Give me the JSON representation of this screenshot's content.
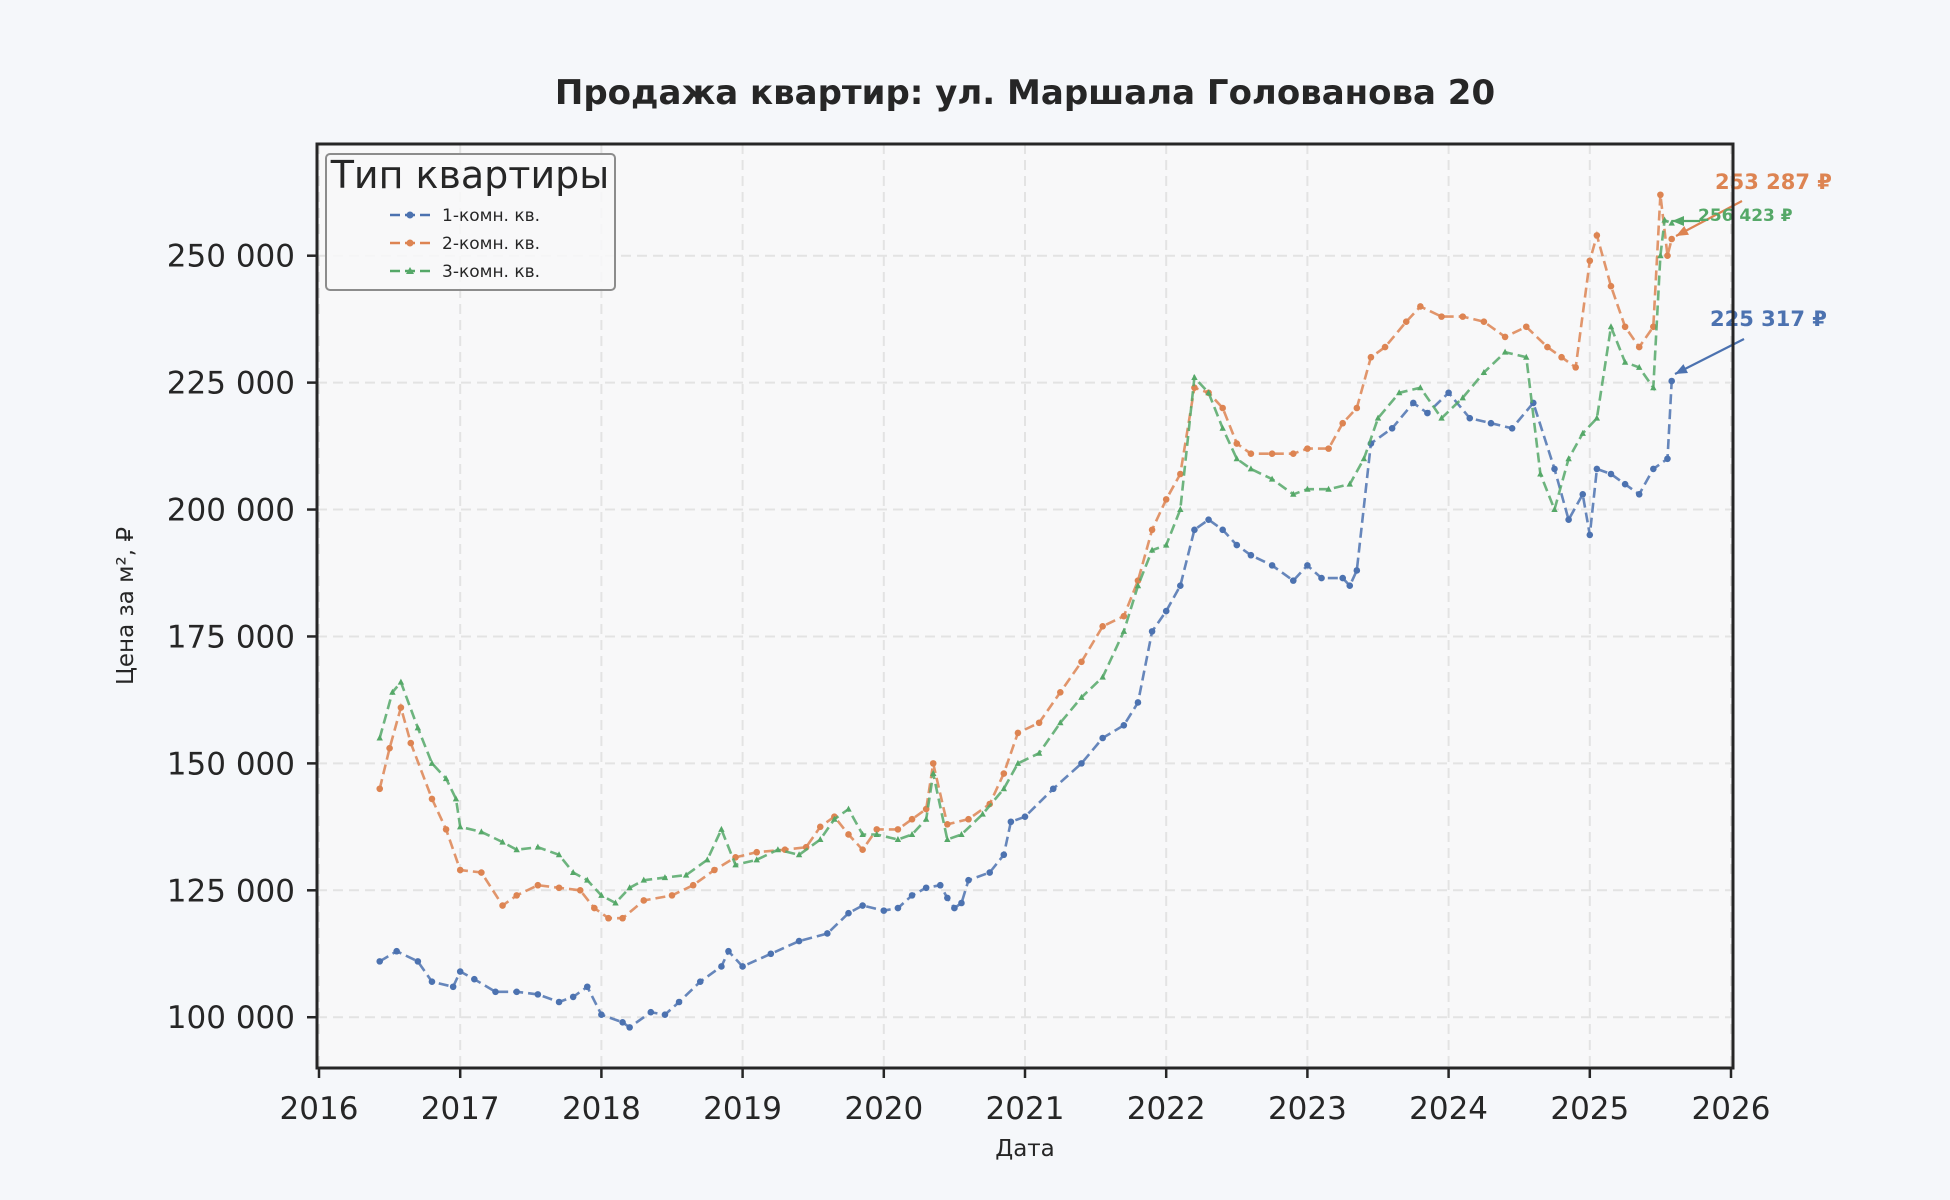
{
  "chart_data": {
    "type": "line",
    "title": "Продажа квартир: ул. Маршала Голованова 20",
    "xlabel": "Дата",
    "ylabel": "Цена за м², ₽",
    "xlim": [
      2016,
      2026
    ],
    "ylim": [
      90000,
      272000
    ],
    "x_ticks": [
      "2016",
      "2017",
      "2018",
      "2019",
      "2020",
      "2021",
      "2022",
      "2023",
      "2024",
      "2025",
      "2026"
    ],
    "y_ticks": [
      {
        "value": 100000,
        "label": "100 000"
      },
      {
        "value": 125000,
        "label": "125 000"
      },
      {
        "value": 150000,
        "label": "150 000"
      },
      {
        "value": 175000,
        "label": "175 000"
      },
      {
        "value": 200000,
        "label": "200 000"
      },
      {
        "value": 225000,
        "label": "225 000"
      },
      {
        "value": 250000,
        "label": "250 000"
      }
    ],
    "grid": true,
    "legend": {
      "title": "Тип квартиры",
      "position": "top-left"
    },
    "series": [
      {
        "name": "1-комн. кв.",
        "color": "#4c72b0",
        "marker": "circle",
        "points": [
          [
            2016.43,
            111000
          ],
          [
            2016.55,
            113000
          ],
          [
            2016.7,
            111000
          ],
          [
            2016.8,
            107000
          ],
          [
            2016.95,
            106000
          ],
          [
            2017.0,
            109000
          ],
          [
            2017.1,
            107500
          ],
          [
            2017.25,
            105000
          ],
          [
            2017.4,
            105000
          ],
          [
            2017.55,
            104500
          ],
          [
            2017.7,
            103000
          ],
          [
            2017.8,
            104000
          ],
          [
            2017.9,
            106000
          ],
          [
            2018.0,
            100500
          ],
          [
            2018.15,
            99000
          ],
          [
            2018.2,
            98000
          ],
          [
            2018.35,
            101000
          ],
          [
            2018.45,
            100500
          ],
          [
            2018.55,
            103000
          ],
          [
            2018.7,
            107000
          ],
          [
            2018.85,
            110000
          ],
          [
            2018.9,
            113000
          ],
          [
            2019.0,
            110000
          ],
          [
            2019.2,
            112500
          ],
          [
            2019.4,
            115000
          ],
          [
            2019.6,
            116500
          ],
          [
            2019.75,
            120500
          ],
          [
            2019.85,
            122000
          ],
          [
            2020.0,
            121000
          ],
          [
            2020.1,
            121500
          ],
          [
            2020.2,
            124000
          ],
          [
            2020.3,
            125500
          ],
          [
            2020.4,
            126000
          ],
          [
            2020.45,
            123500
          ],
          [
            2020.5,
            121500
          ],
          [
            2020.55,
            122500
          ],
          [
            2020.6,
            127000
          ],
          [
            2020.75,
            128500
          ],
          [
            2020.85,
            132000
          ],
          [
            2020.9,
            138500
          ],
          [
            2021.0,
            139500
          ],
          [
            2021.2,
            145000
          ],
          [
            2021.4,
            150000
          ],
          [
            2021.55,
            155000
          ],
          [
            2021.7,
            157500
          ],
          [
            2021.8,
            162000
          ],
          [
            2021.9,
            176000
          ],
          [
            2022.0,
            180000
          ],
          [
            2022.1,
            185000
          ],
          [
            2022.2,
            196000
          ],
          [
            2022.3,
            198000
          ],
          [
            2022.4,
            196000
          ],
          [
            2022.5,
            193000
          ],
          [
            2022.6,
            191000
          ],
          [
            2022.75,
            189000
          ],
          [
            2022.9,
            186000
          ],
          [
            2023.0,
            189000
          ],
          [
            2023.1,
            186500
          ],
          [
            2023.25,
            186500
          ],
          [
            2023.3,
            185000
          ],
          [
            2023.35,
            188000
          ],
          [
            2023.45,
            213000
          ],
          [
            2023.6,
            216000
          ],
          [
            2023.75,
            221000
          ],
          [
            2023.85,
            219000
          ],
          [
            2024.0,
            223000
          ],
          [
            2024.15,
            218000
          ],
          [
            2024.3,
            217000
          ],
          [
            2024.45,
            216000
          ],
          [
            2024.6,
            221000
          ],
          [
            2024.75,
            208000
          ],
          [
            2024.85,
            198000
          ],
          [
            2024.95,
            203000
          ],
          [
            2025.0,
            195000
          ],
          [
            2025.05,
            208000
          ],
          [
            2025.15,
            207000
          ],
          [
            2025.25,
            205000
          ],
          [
            2025.35,
            203000
          ],
          [
            2025.45,
            208000
          ],
          [
            2025.55,
            210000
          ],
          [
            2025.58,
            225317
          ]
        ]
      },
      {
        "name": "2-комн. кв.",
        "color": "#dd8452",
        "marker": "circle",
        "points": [
          [
            2016.43,
            145000
          ],
          [
            2016.5,
            153000
          ],
          [
            2016.58,
            161000
          ],
          [
            2016.65,
            154000
          ],
          [
            2016.8,
            143000
          ],
          [
            2016.9,
            137000
          ],
          [
            2017.0,
            129000
          ],
          [
            2017.15,
            128500
          ],
          [
            2017.3,
            122000
          ],
          [
            2017.4,
            124000
          ],
          [
            2017.55,
            126000
          ],
          [
            2017.7,
            125500
          ],
          [
            2017.85,
            125000
          ],
          [
            2017.95,
            121500
          ],
          [
            2018.05,
            119500
          ],
          [
            2018.15,
            119500
          ],
          [
            2018.3,
            123000
          ],
          [
            2018.5,
            124000
          ],
          [
            2018.65,
            126000
          ],
          [
            2018.8,
            129000
          ],
          [
            2018.95,
            131500
          ],
          [
            2019.1,
            132500
          ],
          [
            2019.3,
            133000
          ],
          [
            2019.45,
            133500
          ],
          [
            2019.55,
            137500
          ],
          [
            2019.65,
            139500
          ],
          [
            2019.75,
            136000
          ],
          [
            2019.85,
            133000
          ],
          [
            2019.95,
            137000
          ],
          [
            2020.1,
            137000
          ],
          [
            2020.2,
            139000
          ],
          [
            2020.3,
            141000
          ],
          [
            2020.35,
            150000
          ],
          [
            2020.45,
            138000
          ],
          [
            2020.6,
            139000
          ],
          [
            2020.75,
            142000
          ],
          [
            2020.85,
            148000
          ],
          [
            2020.95,
            156000
          ],
          [
            2021.1,
            158000
          ],
          [
            2021.25,
            164000
          ],
          [
            2021.4,
            170000
          ],
          [
            2021.55,
            177000
          ],
          [
            2021.7,
            179000
          ],
          [
            2021.8,
            186000
          ],
          [
            2021.9,
            196000
          ],
          [
            2022.0,
            202000
          ],
          [
            2022.1,
            207000
          ],
          [
            2022.2,
            224000
          ],
          [
            2022.3,
            223000
          ],
          [
            2022.4,
            220000
          ],
          [
            2022.5,
            213000
          ],
          [
            2022.6,
            211000
          ],
          [
            2022.75,
            211000
          ],
          [
            2022.9,
            211000
          ],
          [
            2023.0,
            212000
          ],
          [
            2023.15,
            212000
          ],
          [
            2023.25,
            217000
          ],
          [
            2023.35,
            220000
          ],
          [
            2023.45,
            230000
          ],
          [
            2023.55,
            232000
          ],
          [
            2023.7,
            237000
          ],
          [
            2023.8,
            240000
          ],
          [
            2023.95,
            238000
          ],
          [
            2024.1,
            238000
          ],
          [
            2024.25,
            237000
          ],
          [
            2024.4,
            234000
          ],
          [
            2024.55,
            236000
          ],
          [
            2024.7,
            232000
          ],
          [
            2024.8,
            230000
          ],
          [
            2024.9,
            228000
          ],
          [
            2025.0,
            249000
          ],
          [
            2025.05,
            254000
          ],
          [
            2025.15,
            244000
          ],
          [
            2025.25,
            236000
          ],
          [
            2025.35,
            232000
          ],
          [
            2025.45,
            236000
          ],
          [
            2025.5,
            262000
          ],
          [
            2025.55,
            250000
          ],
          [
            2025.58,
            253287
          ]
        ]
      },
      {
        "name": "3-комн. кв.",
        "color": "#55a868",
        "marker": "triangle",
        "points": [
          [
            2016.43,
            155000
          ],
          [
            2016.52,
            164000
          ],
          [
            2016.58,
            166000
          ],
          [
            2016.7,
            157000
          ],
          [
            2016.8,
            150000
          ],
          [
            2016.9,
            147000
          ],
          [
            2016.97,
            143000
          ],
          [
            2017.0,
            137500
          ],
          [
            2017.15,
            136500
          ],
          [
            2017.3,
            134500
          ],
          [
            2017.4,
            133000
          ],
          [
            2017.55,
            133500
          ],
          [
            2017.7,
            132000
          ],
          [
            2017.8,
            128500
          ],
          [
            2017.9,
            127000
          ],
          [
            2018.0,
            124000
          ],
          [
            2018.1,
            122500
          ],
          [
            2018.2,
            125500
          ],
          [
            2018.3,
            127000
          ],
          [
            2018.45,
            127500
          ],
          [
            2018.6,
            128000
          ],
          [
            2018.75,
            131000
          ],
          [
            2018.85,
            137000
          ],
          [
            2018.95,
            130000
          ],
          [
            2019.1,
            131000
          ],
          [
            2019.25,
            133000
          ],
          [
            2019.4,
            132000
          ],
          [
            2019.55,
            135000
          ],
          [
            2019.65,
            139000
          ],
          [
            2019.75,
            141000
          ],
          [
            2019.85,
            136000
          ],
          [
            2019.95,
            136000
          ],
          [
            2020.1,
            135000
          ],
          [
            2020.2,
            136000
          ],
          [
            2020.3,
            139000
          ],
          [
            2020.35,
            148000
          ],
          [
            2020.45,
            135000
          ],
          [
            2020.55,
            136000
          ],
          [
            2020.7,
            140000
          ],
          [
            2020.85,
            145000
          ],
          [
            2020.95,
            150000
          ],
          [
            2021.1,
            152000
          ],
          [
            2021.25,
            158000
          ],
          [
            2021.4,
            163000
          ],
          [
            2021.55,
            167000
          ],
          [
            2021.7,
            176000
          ],
          [
            2021.8,
            185000
          ],
          [
            2021.9,
            192000
          ],
          [
            2022.0,
            193000
          ],
          [
            2022.1,
            200000
          ],
          [
            2022.2,
            226000
          ],
          [
            2022.3,
            223000
          ],
          [
            2022.4,
            216000
          ],
          [
            2022.5,
            210000
          ],
          [
            2022.6,
            208000
          ],
          [
            2022.75,
            206000
          ],
          [
            2022.9,
            203000
          ],
          [
            2023.0,
            204000
          ],
          [
            2023.15,
            204000
          ],
          [
            2023.3,
            205000
          ],
          [
            2023.4,
            210000
          ],
          [
            2023.5,
            218000
          ],
          [
            2023.65,
            223000
          ],
          [
            2023.8,
            224000
          ],
          [
            2023.95,
            218000
          ],
          [
            2024.1,
            222000
          ],
          [
            2024.25,
            227000
          ],
          [
            2024.4,
            231000
          ],
          [
            2024.55,
            230000
          ],
          [
            2024.65,
            207000
          ],
          [
            2024.75,
            200000
          ],
          [
            2024.85,
            210000
          ],
          [
            2024.95,
            215000
          ],
          [
            2025.05,
            218000
          ],
          [
            2025.15,
            236000
          ],
          [
            2025.25,
            229000
          ],
          [
            2025.35,
            228000
          ],
          [
            2025.45,
            224000
          ],
          [
            2025.5,
            250000
          ],
          [
            2025.53,
            257000
          ],
          [
            2025.58,
            256423
          ]
        ]
      }
    ],
    "annotations": [
      {
        "series": "2-комн. кв.",
        "text": "253 287 ₽",
        "color": "#dd8452",
        "value": 253287
      },
      {
        "series": "3-комн. кв.",
        "text": "256 423 ₽",
        "color": "#55a868",
        "value": 256423
      },
      {
        "series": "1-комн. кв.",
        "text": "225 317 ₽",
        "color": "#4c72b0",
        "value": 225317
      }
    ]
  }
}
